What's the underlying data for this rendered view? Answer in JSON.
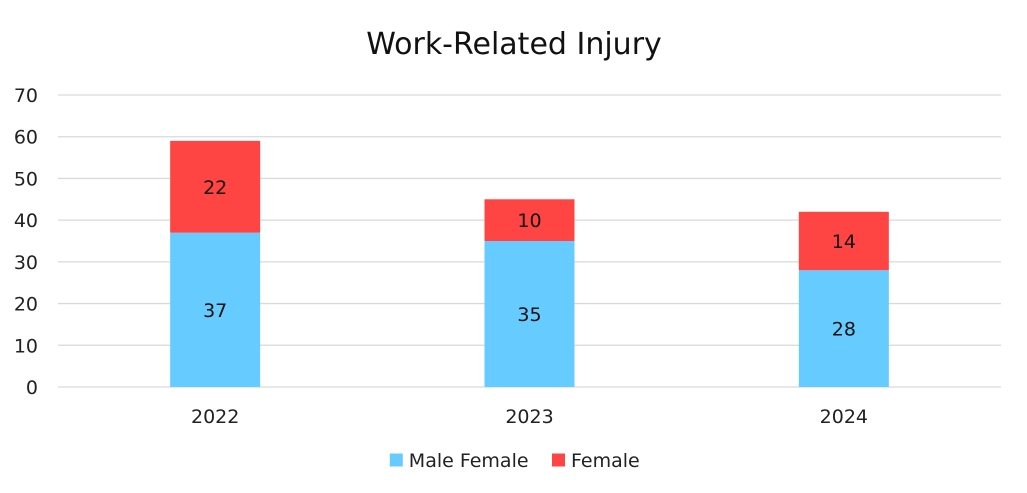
{
  "chart_data": {
    "type": "bar",
    "stacked": true,
    "title": "Work-Related Injury",
    "xlabel": "",
    "ylabel": "",
    "categories": [
      "2022",
      "2023",
      "2024"
    ],
    "ylim": [
      0,
      70
    ],
    "yticks": [
      0,
      10,
      20,
      30,
      40,
      50,
      60,
      70
    ],
    "grid": true,
    "legend_position": "bottom",
    "series": [
      {
        "name": "Male Female",
        "values": [
          37,
          35,
          28
        ],
        "color": "#66ccff"
      },
      {
        "name": "Female",
        "values": [
          22,
          10,
          14
        ],
        "color": "#ff4444"
      }
    ]
  }
}
